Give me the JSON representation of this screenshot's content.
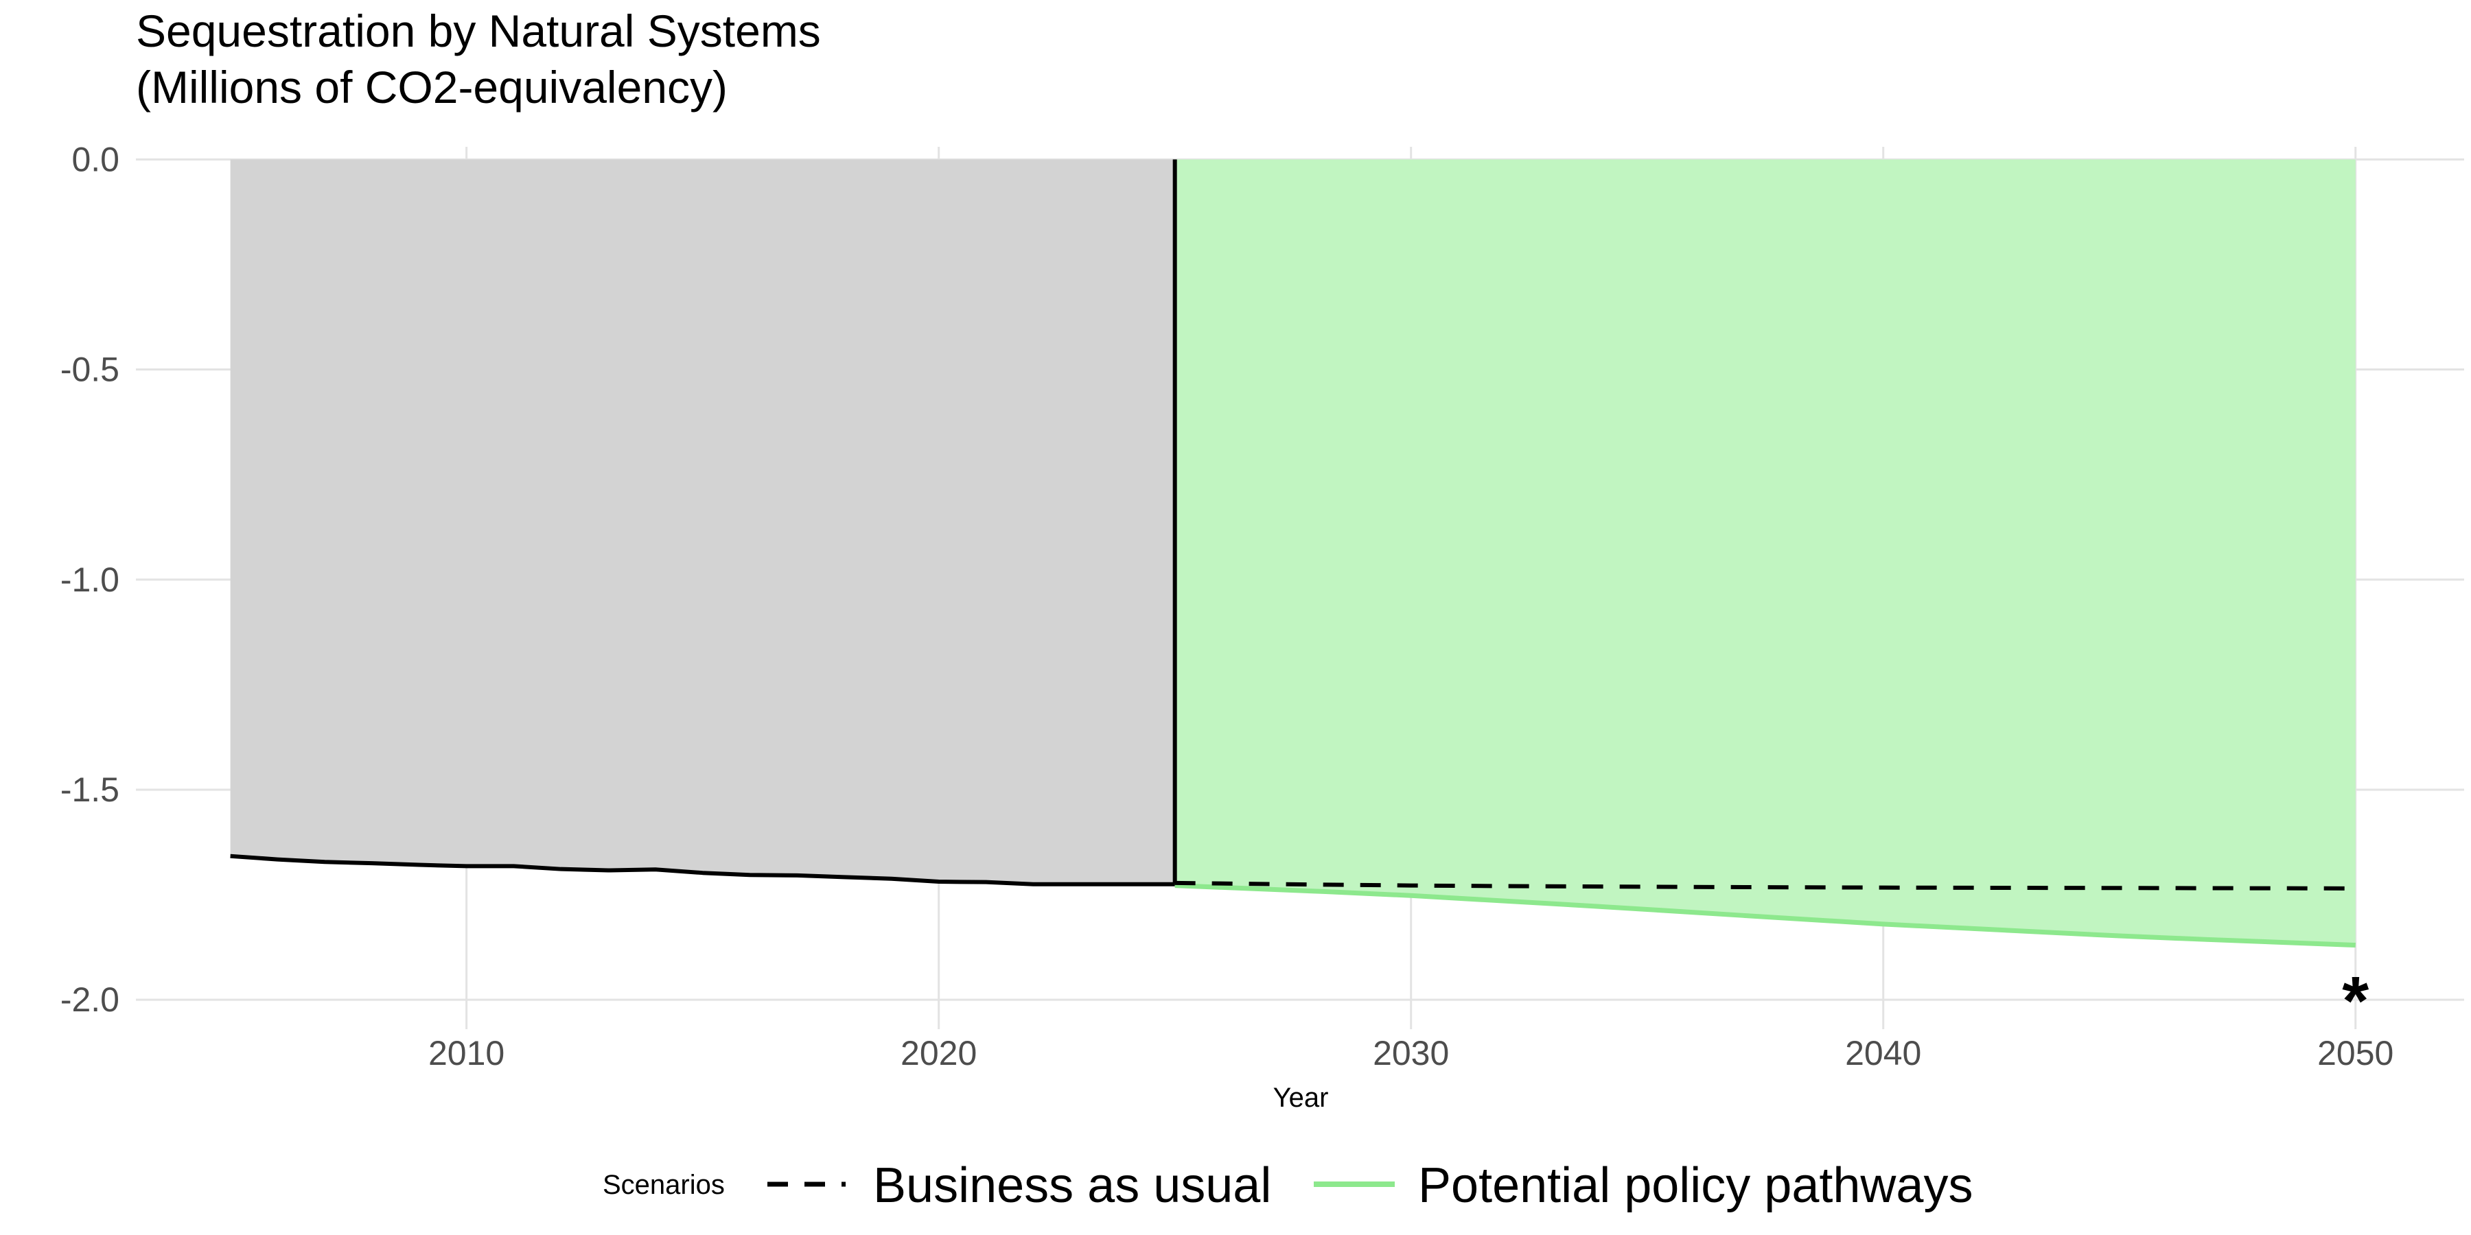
{
  "chart_data": {
    "type": "area",
    "title": "Sequestration by Natural Systems",
    "subtitle": "(Millions of CO2-equivalency)",
    "xlabel": "Year",
    "ylabel": "",
    "xlim": [
      2003,
      2052.3
    ],
    "ylim": [
      -2.07,
      0.03
    ],
    "x_ticks": [
      2010,
      2020,
      2030,
      2040,
      2050
    ],
    "x_tick_labels": [
      "2010",
      "2020",
      "2030",
      "2040",
      "2050"
    ],
    "y_ticks": [
      0.0,
      -0.5,
      -1.0,
      -1.5,
      -2.0
    ],
    "y_tick_labels": [
      "0.0",
      "-0.5",
      "-1.0",
      "-1.5",
      "-2.0"
    ],
    "grid": true,
    "shaded_regions": [
      {
        "x_start": 2005,
        "x_end": 2025,
        "y_top": 0.0,
        "color": "#d3d3d3"
      },
      {
        "x_start": 2025,
        "x_end": 2050,
        "y_top": 0.0,
        "color": "#c1f5c1"
      }
    ],
    "divider_x": 2025,
    "historical": {
      "x": [
        2005,
        2006,
        2007,
        2008,
        2009,
        2010,
        2011,
        2012,
        2013,
        2014,
        2015,
        2016,
        2017,
        2018,
        2019,
        2020,
        2021,
        2022,
        2023,
        2024,
        2025
      ],
      "values": [
        -1.658,
        -1.666,
        -1.672,
        -1.675,
        -1.679,
        -1.682,
        -1.682,
        -1.689,
        -1.692,
        -1.69,
        -1.698,
        -1.703,
        -1.704,
        -1.708,
        -1.712,
        -1.719,
        -1.72,
        -1.725,
        -1.725,
        -1.725,
        -1.725
      ],
      "color": "#000000"
    },
    "series": [
      {
        "name": "Business as usual",
        "x": [
          2025,
          2030,
          2035,
          2040,
          2045,
          2050
        ],
        "values": [
          -1.722,
          -1.728,
          -1.731,
          -1.733,
          -1.734,
          -1.735
        ],
        "color": "#000000",
        "style": "dashed"
      },
      {
        "name": "Potential policy pathways",
        "x": [
          2025,
          2030,
          2035,
          2040,
          2045,
          2050
        ],
        "values": [
          -1.728,
          -1.752,
          -1.785,
          -1.82,
          -1.848,
          -1.87
        ],
        "color": "#8de88d",
        "style": "solid"
      }
    ],
    "annotations": [
      {
        "text": "*",
        "x": 2050,
        "y": -1.98
      }
    ],
    "legend": {
      "title": "Scenarios",
      "position": "bottom"
    }
  }
}
